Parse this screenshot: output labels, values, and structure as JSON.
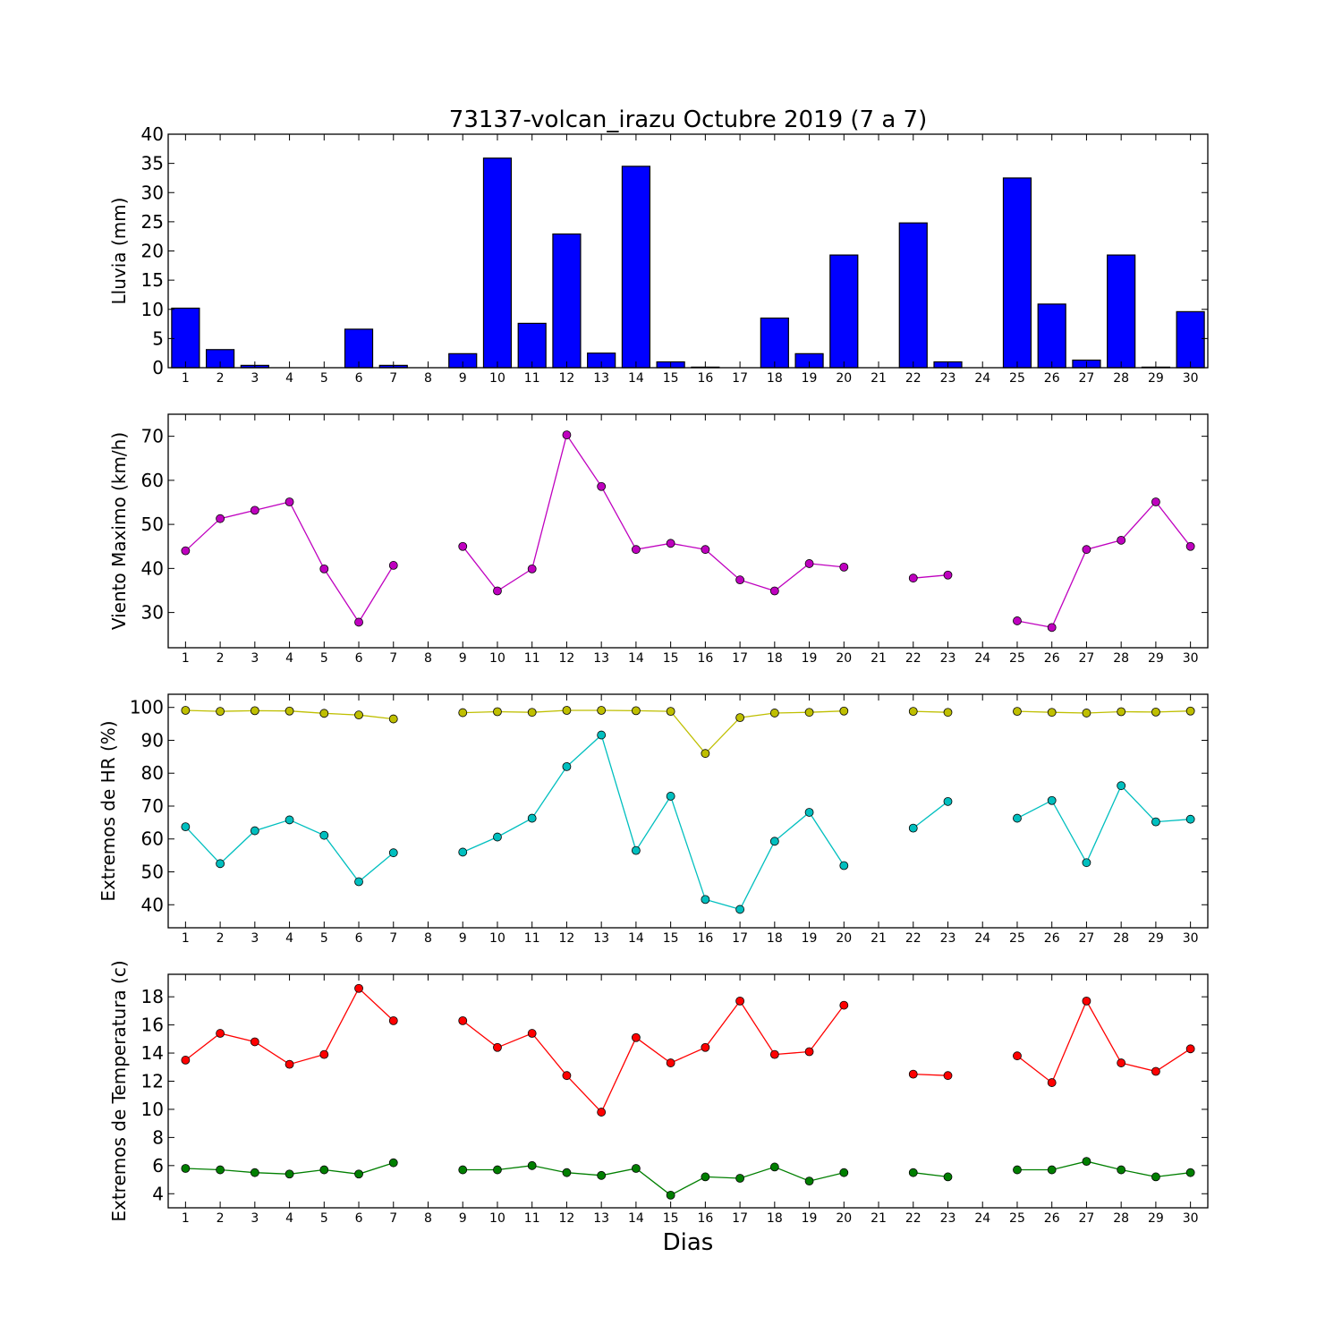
{
  "chart_data": [
    {
      "type": "bar",
      "title": "73137-volcan_irazu Octubre 2019  (7 a 7)",
      "xlabel": "",
      "ylabel": "Lluvia (mm)",
      "xlim": [
        0.5,
        30.5
      ],
      "ylim": [
        0,
        40
      ],
      "yticks": [
        0,
        5,
        10,
        15,
        20,
        25,
        30,
        35,
        40
      ],
      "grid": false,
      "categories": [
        1,
        2,
        3,
        4,
        5,
        6,
        7,
        8,
        9,
        10,
        11,
        12,
        13,
        14,
        15,
        16,
        17,
        18,
        19,
        20,
        21,
        22,
        23,
        24,
        25,
        26,
        27,
        28,
        29,
        30
      ],
      "series": [
        {
          "color": "#0000ff",
          "values": [
            10.2,
            3.1,
            0.4,
            0.0,
            0.0,
            6.6,
            0.4,
            0.0,
            2.4,
            35.9,
            7.6,
            22.9,
            2.5,
            34.5,
            1.0,
            0.1,
            0.0,
            8.5,
            2.4,
            19.3,
            0.0,
            24.8,
            1.0,
            0.0,
            32.5,
            10.9,
            1.3,
            19.3,
            0.1,
            9.6
          ]
        }
      ]
    },
    {
      "type": "line",
      "title": "",
      "xlabel": "",
      "ylabel": "Viento Maximo (km/h)",
      "xlim": [
        0.5,
        30.5
      ],
      "ylim": [
        22,
        75
      ],
      "yticks": [
        30,
        40,
        50,
        60,
        70
      ],
      "grid": false,
      "x": [
        1,
        2,
        3,
        4,
        5,
        6,
        7,
        8,
        9,
        10,
        11,
        12,
        13,
        14,
        15,
        16,
        17,
        18,
        19,
        20,
        21,
        22,
        23,
        24,
        25,
        26,
        27,
        28,
        29,
        30
      ],
      "series": [
        {
          "color": "#bf00bf",
          "values": [
            44.0,
            51.3,
            53.2,
            55.1,
            39.9,
            27.8,
            40.7,
            null,
            45.0,
            34.9,
            39.9,
            70.3,
            58.6,
            44.3,
            45.7,
            44.3,
            37.4,
            34.9,
            41.1,
            40.3,
            null,
            37.8,
            38.5,
            null,
            28.1,
            26.6,
            44.3,
            46.4,
            55.1,
            45.0
          ]
        }
      ]
    },
    {
      "type": "line",
      "title": "",
      "xlabel": "",
      "ylabel": "Extremos de HR (%)",
      "xlim": [
        0.5,
        30.5
      ],
      "ylim": [
        33,
        104
      ],
      "yticks": [
        40,
        50,
        60,
        70,
        80,
        90,
        100
      ],
      "grid": false,
      "x": [
        1,
        2,
        3,
        4,
        5,
        6,
        7,
        8,
        9,
        10,
        11,
        12,
        13,
        14,
        15,
        16,
        17,
        18,
        19,
        20,
        21,
        22,
        23,
        24,
        25,
        26,
        27,
        28,
        29,
        30
      ],
      "series": [
        {
          "color": "#bfbf00",
          "values": [
            99.1,
            98.8,
            99.0,
            98.9,
            98.2,
            97.7,
            96.5,
            null,
            98.4,
            98.7,
            98.5,
            99.1,
            99.1,
            99.0,
            98.8,
            86.0,
            96.9,
            98.3,
            98.5,
            98.9,
            null,
            98.8,
            98.5,
            null,
            98.8,
            98.5,
            98.3,
            98.7,
            98.6,
            98.9
          ]
        },
        {
          "color": "#00bfbf",
          "values": [
            63.7,
            52.5,
            62.5,
            65.8,
            61.1,
            47.0,
            55.8,
            null,
            56.0,
            60.6,
            66.3,
            82.0,
            91.6,
            56.5,
            73.0,
            41.6,
            38.6,
            59.3,
            68.1,
            51.9,
            null,
            63.3,
            71.4,
            null,
            66.3,
            71.7,
            52.8,
            76.2,
            65.2,
            66.0
          ]
        }
      ]
    },
    {
      "type": "line",
      "title": "",
      "xlabel": "Dias",
      "ylabel": "Extremos de Temperatura (c)",
      "xlim": [
        0.5,
        30.5
      ],
      "ylim": [
        3,
        19.6
      ],
      "yticks": [
        4,
        6,
        8,
        10,
        12,
        14,
        16,
        18
      ],
      "grid": false,
      "x": [
        1,
        2,
        3,
        4,
        5,
        6,
        7,
        8,
        9,
        10,
        11,
        12,
        13,
        14,
        15,
        16,
        17,
        18,
        19,
        20,
        21,
        22,
        23,
        24,
        25,
        26,
        27,
        28,
        29,
        30
      ],
      "series": [
        {
          "color": "#ff0000",
          "values": [
            13.5,
            15.4,
            14.8,
            13.2,
            13.9,
            18.6,
            16.3,
            null,
            16.3,
            14.4,
            15.4,
            12.4,
            9.8,
            15.1,
            13.3,
            14.4,
            17.7,
            13.9,
            14.1,
            17.4,
            null,
            12.5,
            12.4,
            null,
            13.8,
            11.9,
            17.7,
            13.3,
            12.7,
            14.3
          ]
        },
        {
          "color": "#007f00",
          "values": [
            5.8,
            5.7,
            5.5,
            5.4,
            5.7,
            5.4,
            6.2,
            null,
            5.7,
            5.7,
            6.0,
            5.5,
            5.3,
            5.8,
            3.9,
            5.2,
            5.1,
            5.9,
            4.9,
            5.5,
            null,
            5.5,
            5.2,
            null,
            5.7,
            5.7,
            6.3,
            5.7,
            5.2,
            5.5
          ]
        }
      ]
    }
  ]
}
